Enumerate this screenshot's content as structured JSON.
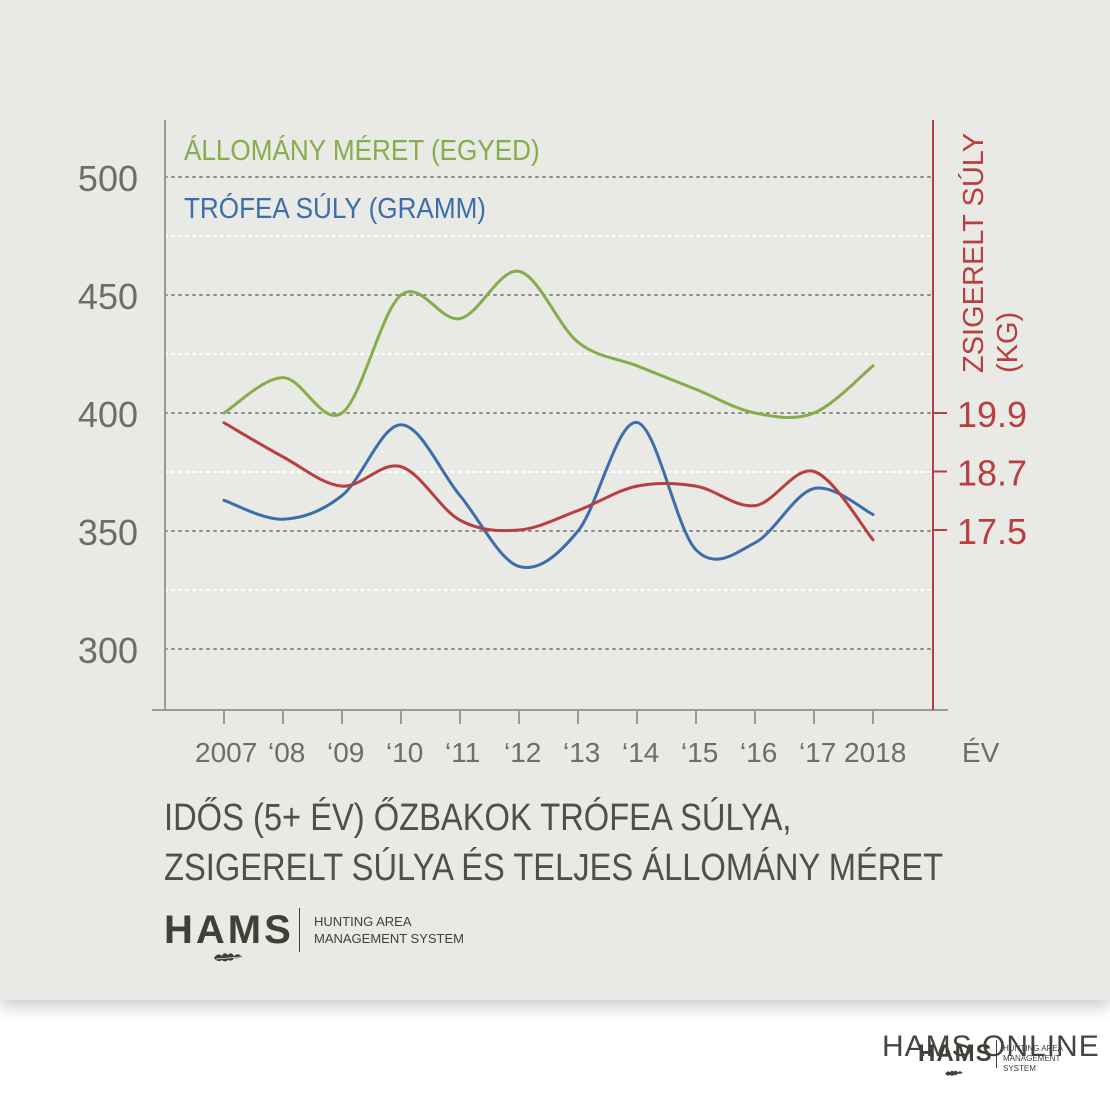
{
  "chart_data": {
    "type": "line",
    "title": "IDŐS (5+ ÉV) ŐZBAKOK TRÓFEA SÚLYA,\nZSIGERELT SÚLYA ÉS TELJES ÁLLOMÁNY MÉRET",
    "title_lines": [
      "IDŐS (5+ ÉV) ŐZBAKOK TRÓFEA SÚLYA,",
      "ZSIGERELT SÚLYA ÉS TELJES ÁLLOMÁNY MÉRET"
    ],
    "x": [
      2007,
      2008,
      2009,
      2010,
      2011,
      2012,
      2013,
      2014,
      2015,
      2016,
      2017,
      2018
    ],
    "x_tick_labels": [
      "2007",
      "‘08",
      "‘09",
      "‘10",
      "‘11",
      "‘12",
      "‘13",
      "‘14",
      "‘15",
      "‘16",
      "‘17",
      "2018"
    ],
    "xlabel": "ÉV",
    "y_left": {
      "ticks": [
        300,
        350,
        400,
        450,
        500
      ],
      "range": [
        275,
        525
      ],
      "grid": true
    },
    "y_right": {
      "label": "ZSIGERELT SÚLY (KG)",
      "label_lines": [
        "ZSIGERELT SÚLY",
        "(KG)"
      ],
      "ticks": [
        "19.9",
        "18.7",
        "17.5"
      ],
      "tick_values": [
        19.9,
        18.7,
        17.5
      ]
    },
    "series": [
      {
        "name": "ÁLLOMÁNY MÉRET (EGYED)",
        "color": "#86ad4b",
        "axis": "left",
        "values": [
          400,
          415,
          400,
          450,
          440,
          460,
          430,
          420,
          410,
          400,
          400,
          420
        ]
      },
      {
        "name": "TRÓFEA SÚLY (GRAMM)",
        "color": "#3c6eab",
        "axis": "left",
        "values": [
          363,
          355,
          365,
          395,
          365,
          335,
          350,
          396,
          342,
          345,
          368,
          357
        ]
      },
      {
        "name": "ZSIGERELT SÚLY (KG)",
        "color": "#b73f3f",
        "axis": "right",
        "values": [
          19.7,
          19.0,
          18.4,
          18.8,
          17.7,
          17.5,
          17.9,
          18.4,
          18.4,
          18.0,
          18.7,
          17.3
        ]
      }
    ],
    "legend": "top-left",
    "colors": {
      "left_axis": "#9a9a97",
      "right_axis": "#b73f3f",
      "grid": "#9c9c99",
      "tick_text": "#6d6d6a",
      "background": "#e9e9e5"
    }
  },
  "brand": {
    "mark": "HAMS",
    "sub_line1": "HUNTING AREA",
    "sub_line2": "MANAGEMENT SYSTEM",
    "icon": "oak-leaf-icon",
    "color": "#3d4235"
  },
  "watermark": {
    "text": "HAMS ONLINE",
    "mark": "HAMS",
    "sub_line1": "HUNTING AREA",
    "sub_line2": "MANAGEMENT SYSTEM"
  }
}
